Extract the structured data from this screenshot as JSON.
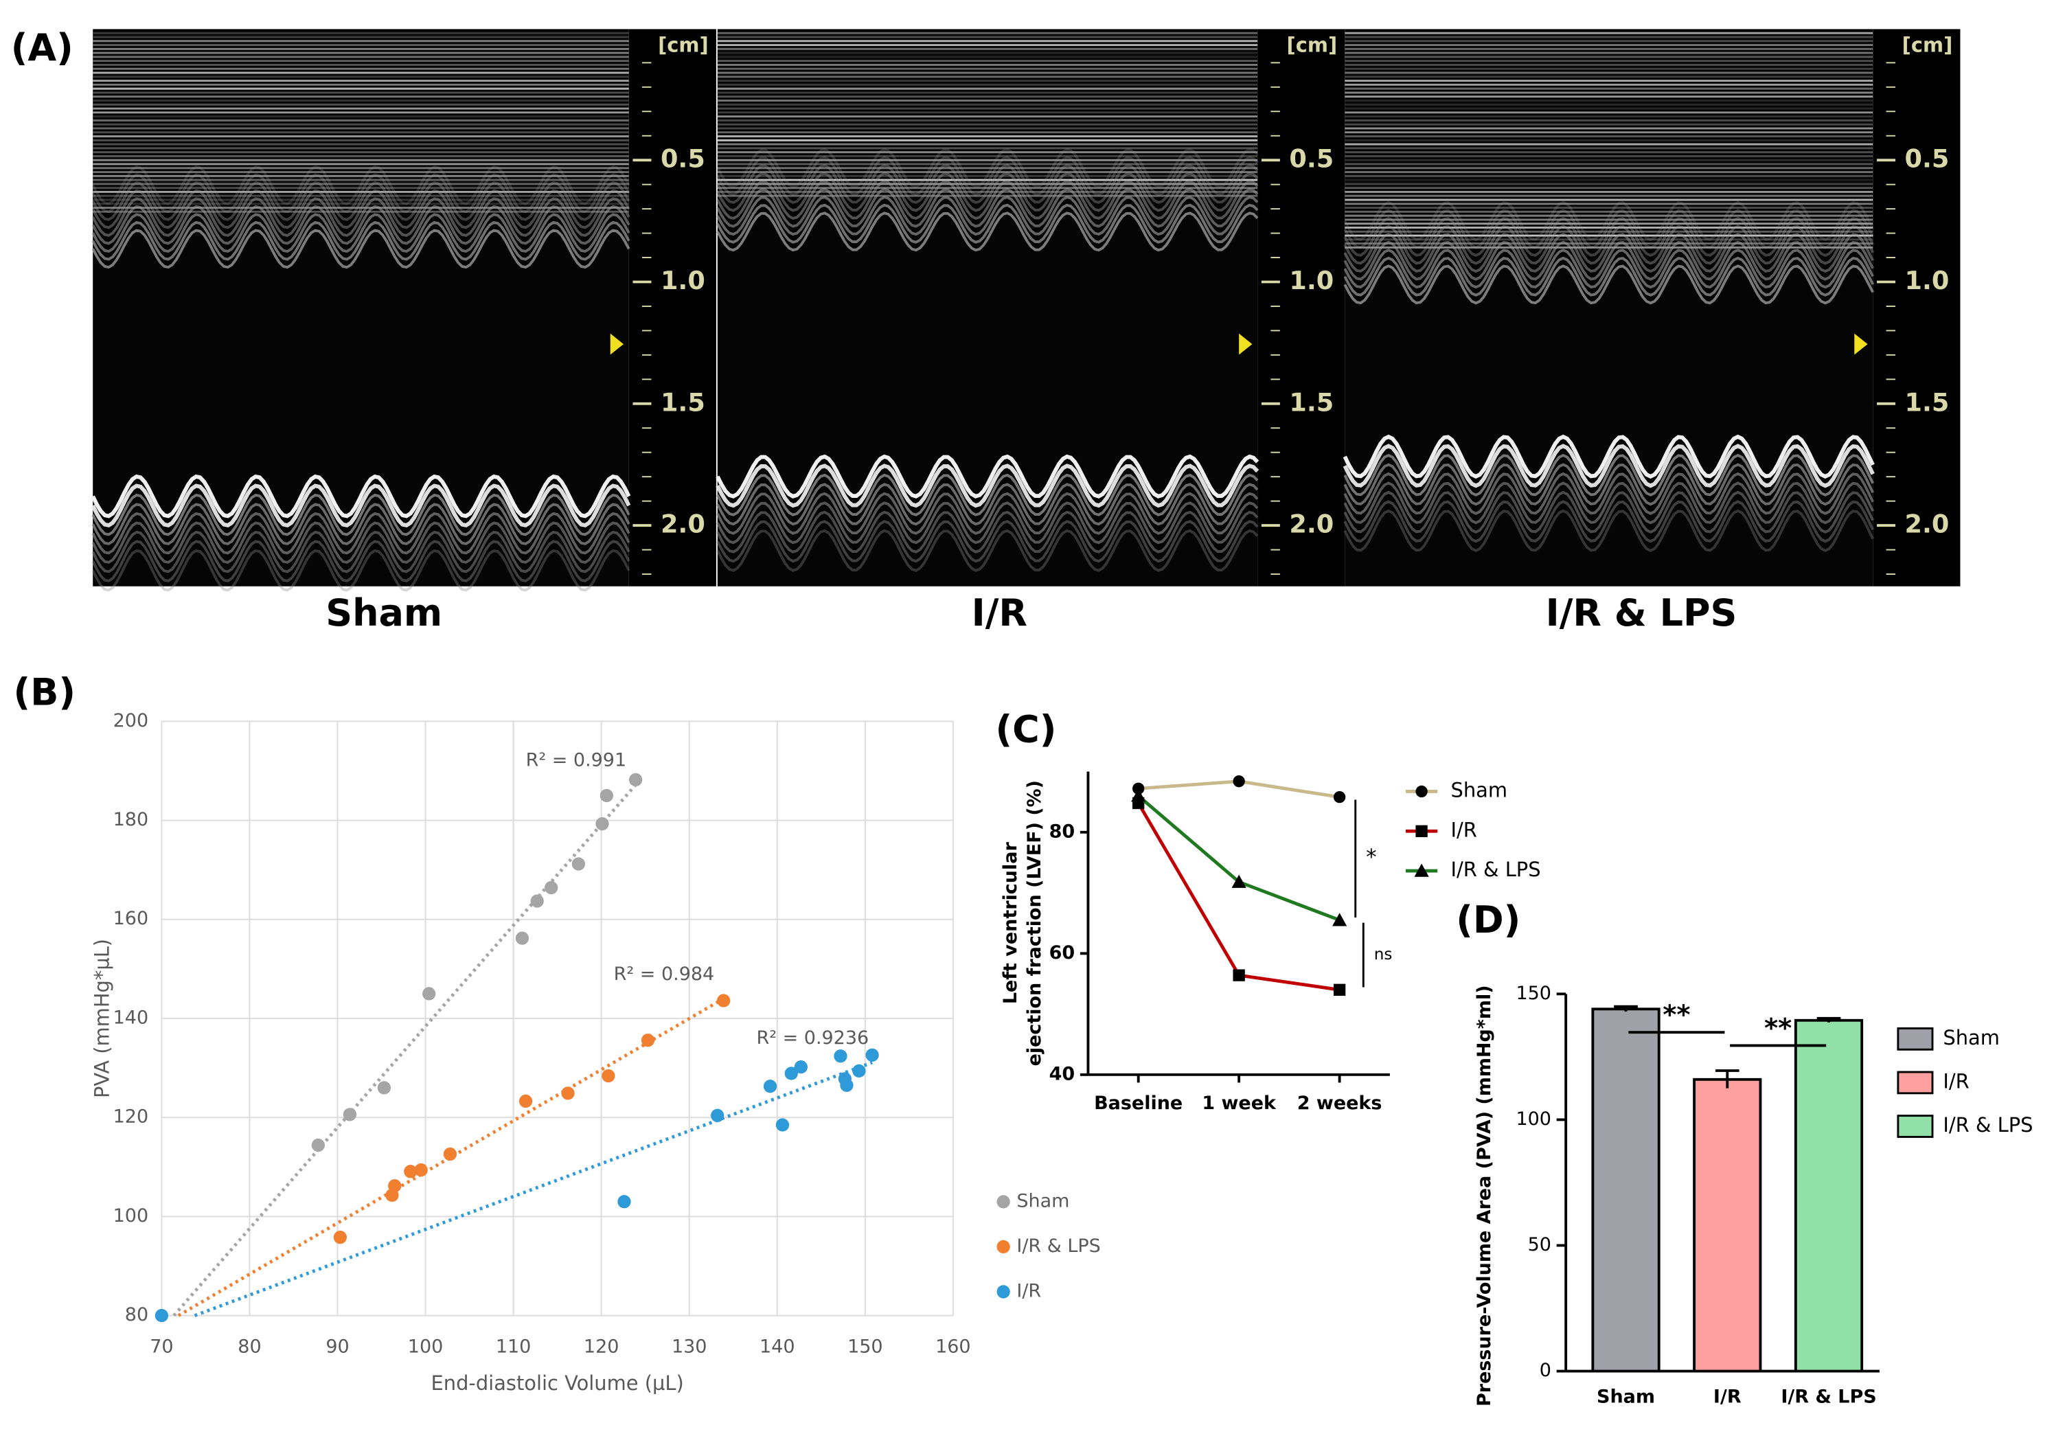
{
  "panel_a": {
    "label": "(A)",
    "scale_unit": "[cm]",
    "scale_ticks": [
      "0.5",
      "1.0",
      "1.5",
      "2.0"
    ],
    "images": [
      {
        "label": "Sham"
      },
      {
        "label": "I/R"
      },
      {
        "label": "I/R & LPS"
      }
    ]
  },
  "chart_data": [
    {
      "type": "scatter",
      "panel_label": "(B)",
      "xlabel": "End-diastolic Volume (µL)",
      "ylabel": "PVA (mmHg*µL)",
      "xlim": [
        70,
        160
      ],
      "xticks": [
        70,
        80,
        90,
        100,
        110,
        120,
        130,
        140,
        150,
        160
      ],
      "ylim": [
        80,
        200
      ],
      "yticks": [
        80,
        100,
        120,
        140,
        160,
        180,
        200
      ],
      "grid": true,
      "trendline": true,
      "legend": "right",
      "series": [
        {
          "name": "Sham",
          "color": "#a5a5a5",
          "annotation": "R² = 0.991",
          "x": [
            87.8,
            91.4,
            95.3,
            100.4,
            111,
            112.7,
            114.3,
            117.4,
            120.1,
            120.6,
            123.9
          ],
          "values": [
            114.4,
            120.6,
            126,
            145,
            156.2,
            163.7,
            166.4,
            171.2,
            179.3,
            185,
            188.2
          ]
        },
        {
          "name": "I/R & LPS",
          "color": "#f08030",
          "annotation": "R² = 0.984",
          "x": [
            90.3,
            96.2,
            96.5,
            98.3,
            99.5,
            102.8,
            111.4,
            116.2,
            120.8,
            125.3,
            133.9
          ],
          "values": [
            95.8,
            104.3,
            106.2,
            109.1,
            109.4,
            112.6,
            123.3,
            124.9,
            128.4,
            135.6,
            143.6
          ]
        },
        {
          "name": "I/R",
          "color": "#2e9ad8",
          "annotation": "R² = 0.9236",
          "x": [
            70,
            122.6,
            133.2,
            139.2,
            140.6,
            141.6,
            142.7,
            147.2,
            147.7,
            147.9,
            149.3,
            150.8
          ],
          "values": [
            80,
            103,
            120.4,
            126.3,
            118.5,
            128.9,
            130.2,
            132.4,
            127.8,
            126.5,
            129.4,
            132.6
          ]
        }
      ]
    },
    {
      "type": "line",
      "panel_label": "(C)",
      "ylabel": [
        "Left ventricular",
        "ejection fraction (LVEF) (%)"
      ],
      "categories": [
        "Baseline",
        "1 week",
        "2 weeks"
      ],
      "ylim": [
        40,
        90
      ],
      "yticks": [
        40,
        60,
        80
      ],
      "marker_color": "#000000",
      "legend": "right",
      "annotations": [
        "*",
        "ns"
      ],
      "series": [
        {
          "name": "Sham",
          "color": "#c8b88a",
          "marker": "circle",
          "values": [
            87.2,
            88.4,
            85.8
          ]
        },
        {
          "name": "I/R",
          "color": "#c00000",
          "marker": "square",
          "values": [
            84.8,
            56.4,
            54
          ]
        },
        {
          "name": "I/R & LPS",
          "color": "#1f7a1f",
          "marker": "triangle",
          "values": [
            86,
            71.8,
            65.5
          ]
        }
      ]
    },
    {
      "type": "bar",
      "panel_label": "(D)",
      "ylabel": "Pressure-Volume Area (PVA) (mmHg*ml)",
      "categories": [
        "Sham",
        "I/R",
        "I/R & LPS"
      ],
      "ylim": [
        0,
        150
      ],
      "yticks": [
        0,
        50,
        100,
        150
      ],
      "values": [
        144,
        116,
        139.5
      ],
      "errors": [
        1,
        3.5,
        0.8
      ],
      "colors": [
        "#a0a0a8",
        "#ffa0a0",
        "#90e0a8"
      ],
      "legend": "right",
      "annotations": [
        "**",
        "**"
      ]
    }
  ]
}
